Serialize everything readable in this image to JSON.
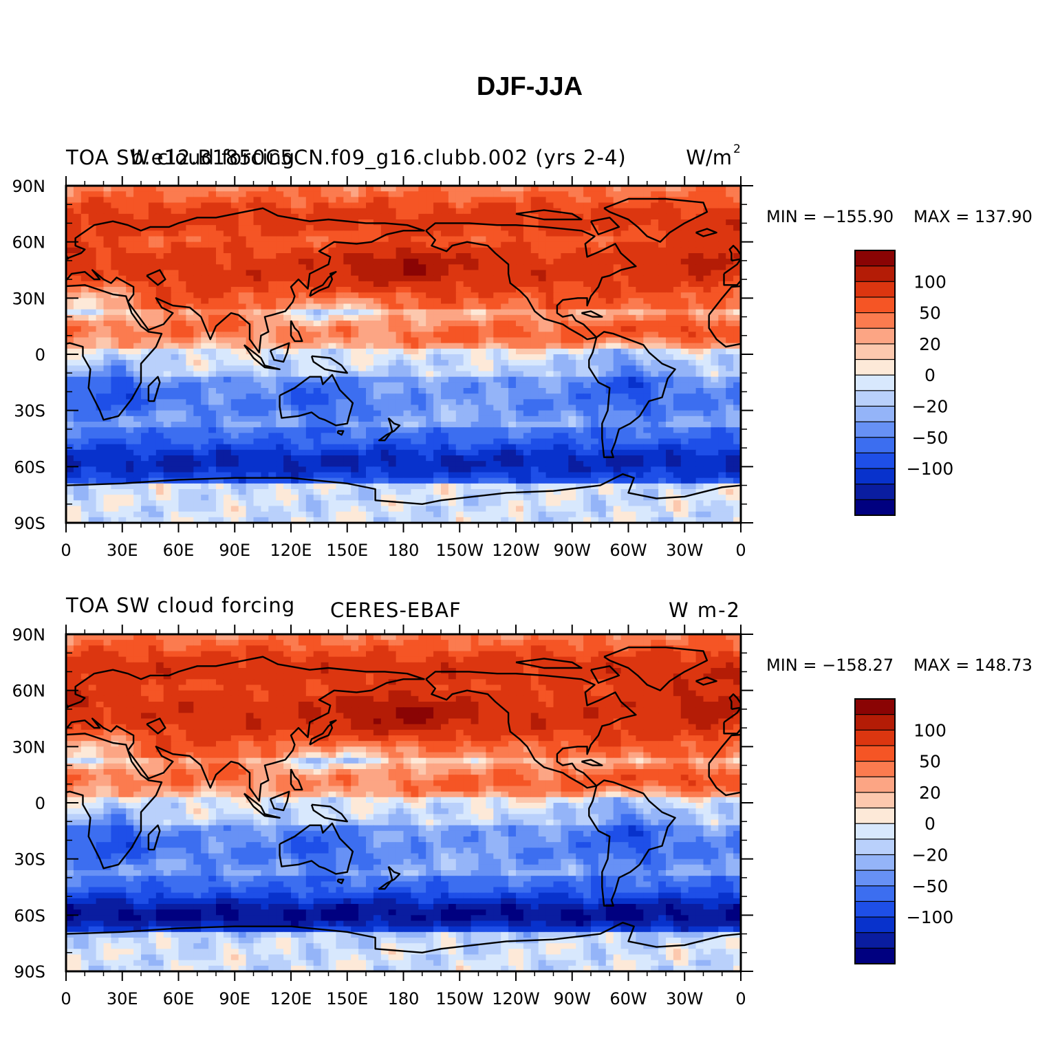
{
  "title": "DJF-JJA",
  "colors": {
    "levels": [
      "#000080",
      "#0a1da0",
      "#0832cc",
      "#1e4fe8",
      "#3c6ef0",
      "#6791f5",
      "#94b4f8",
      "#b9d0fb",
      "#d8e8fd",
      "#fde9d8",
      "#fcc8ae",
      "#fca584",
      "#fb7b4f",
      "#f55525",
      "#dc3610",
      "#b41c06",
      "#8a0404"
    ],
    "coast": "#000000"
  },
  "chart_data": [
    {
      "type": "heatmap",
      "title_left": "TOA SW cloud forcing",
      "title_center": "b.e12.B1850C5CN.f09_g16.clubb.002 (yrs 2-4)",
      "title_right": "W/m",
      "title_right_sup": "2",
      "min_label": "MIN = -155.90",
      "max_label": "MAX = 137.90",
      "min": -155.9,
      "max": 137.9,
      "lon_range": [
        0,
        360
      ],
      "lat_range": [
        -90,
        90
      ],
      "x_tick_labels": [
        "0",
        "30E",
        "60E",
        "90E",
        "120E",
        "150E",
        "180",
        "150W",
        "120W",
        "90W",
        "60W",
        "30W",
        "0"
      ],
      "y_tick_labels": [
        "90N",
        "60N",
        "30N",
        "0",
        "30S",
        "60S",
        "90S"
      ],
      "colorbar_labels": [
        "100",
        "50",
        "20",
        "0",
        "-20",
        "-50",
        "-100"
      ],
      "colorbar_label_levels": [
        100,
        50,
        20,
        0,
        -20,
        -50,
        -100
      ]
    },
    {
      "type": "heatmap",
      "title_left": "TOA SW cloud forcing",
      "title_center": "CERES-EBAF",
      "title_right": "W m-2",
      "min_label": "MIN = -158.27",
      "max_label": "MAX = 148.73",
      "min": -158.27,
      "max": 148.73,
      "lon_range": [
        0,
        360
      ],
      "lat_range": [
        -90,
        90
      ],
      "x_tick_labels": [
        "0",
        "30E",
        "60E",
        "90E",
        "120E",
        "150E",
        "180",
        "150W",
        "120W",
        "90W",
        "60W",
        "30W",
        "0"
      ],
      "y_tick_labels": [
        "90N",
        "60N",
        "30N",
        "0",
        "30S",
        "60S",
        "90S"
      ],
      "colorbar_labels": [
        "100",
        "50",
        "20",
        "0",
        "-20",
        "-50",
        "-100"
      ],
      "colorbar_label_levels": [
        100,
        50,
        20,
        0,
        -20,
        -50,
        -100
      ]
    }
  ]
}
